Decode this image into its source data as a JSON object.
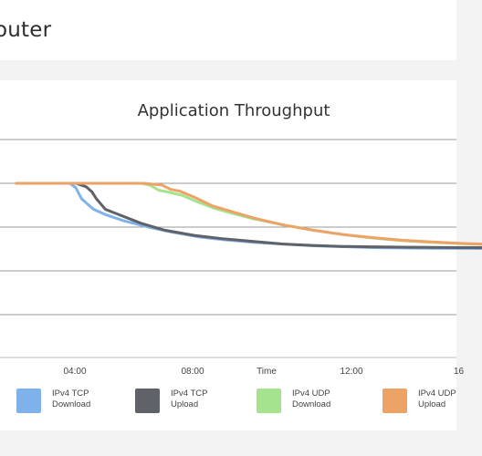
{
  "header": {
    "title": "outer"
  },
  "chart_data": {
    "type": "line",
    "title": "Application Throughput",
    "xlabel": "Time",
    "ylabel": "",
    "xticks": [
      "04:00",
      "08:00",
      "12:00",
      "16"
    ],
    "grid": true,
    "legend_position": "bottom",
    "series": [
      {
        "name": "IPv4 TCP Download",
        "color": "#7fb2ea",
        "points": [
          [
            0,
            100
          ],
          [
            1.8,
            100
          ],
          [
            2.0,
            95
          ],
          [
            2.2,
            82
          ],
          [
            2.6,
            70
          ],
          [
            3.0,
            64
          ],
          [
            3.6,
            57
          ],
          [
            4.4,
            50
          ],
          [
            5.2,
            44
          ],
          [
            6.2,
            38
          ],
          [
            7.0,
            35
          ],
          [
            8.0,
            32
          ],
          [
            9.0,
            30
          ],
          [
            10.0,
            28
          ],
          [
            11.0,
            27
          ],
          [
            12.0,
            26
          ],
          [
            13.0,
            25.6
          ],
          [
            14.0,
            25.2
          ],
          [
            15.0,
            25
          ],
          [
            16.0,
            24.7
          ]
        ]
      },
      {
        "name": "IPv4 TCP Upload",
        "color": "#5f6268",
        "points": [
          [
            0,
            100
          ],
          [
            2.0,
            100
          ],
          [
            2.35,
            96
          ],
          [
            2.55,
            90
          ],
          [
            2.7,
            82
          ],
          [
            3.0,
            70
          ],
          [
            3.6,
            62
          ],
          [
            4.2,
            54
          ],
          [
            5.0,
            46
          ],
          [
            6.0,
            40
          ],
          [
            7.0,
            36
          ],
          [
            8.0,
            33
          ],
          [
            9.0,
            30
          ],
          [
            10.0,
            28.5
          ],
          [
            11.0,
            27.3
          ],
          [
            12.0,
            26.8
          ],
          [
            13.0,
            26.5
          ],
          [
            14.0,
            26.2
          ],
          [
            15.0,
            26
          ],
          [
            16.0,
            25.9
          ]
        ]
      },
      {
        "name": "IPv4 UDP Download",
        "color": "#a5e38f",
        "points": [
          [
            0,
            100
          ],
          [
            4.2,
            100
          ],
          [
            4.5,
            98
          ],
          [
            4.8,
            92
          ],
          [
            5.1,
            90
          ],
          [
            5.6,
            86
          ],
          [
            6.0,
            80
          ],
          [
            6.6,
            72
          ],
          [
            7.2,
            66
          ],
          [
            8.0,
            59
          ],
          [
            9.0,
            52
          ],
          [
            10.0,
            46
          ],
          [
            11.0,
            41
          ],
          [
            12.0,
            37
          ],
          [
            13.0,
            34
          ],
          [
            14.0,
            32
          ],
          [
            15.0,
            30.5
          ],
          [
            16.0,
            29.5
          ]
        ]
      },
      {
        "name": "IPv4 UDP Upload",
        "color": "#eda266",
        "points": [
          [
            0,
            100
          ],
          [
            4.3,
            100
          ],
          [
            4.6,
            99
          ],
          [
            4.9,
            98
          ],
          [
            5.2,
            93
          ],
          [
            5.5,
            91
          ],
          [
            6.0,
            84
          ],
          [
            6.6,
            74
          ],
          [
            7.2,
            68
          ],
          [
            8.0,
            60
          ],
          [
            9.0,
            52
          ],
          [
            10.0,
            46
          ],
          [
            11.0,
            41
          ],
          [
            12.0,
            37.5
          ],
          [
            13.0,
            34.5
          ],
          [
            14.0,
            32.5
          ],
          [
            15.0,
            30.8
          ],
          [
            16.0,
            29.8
          ]
        ]
      }
    ]
  }
}
